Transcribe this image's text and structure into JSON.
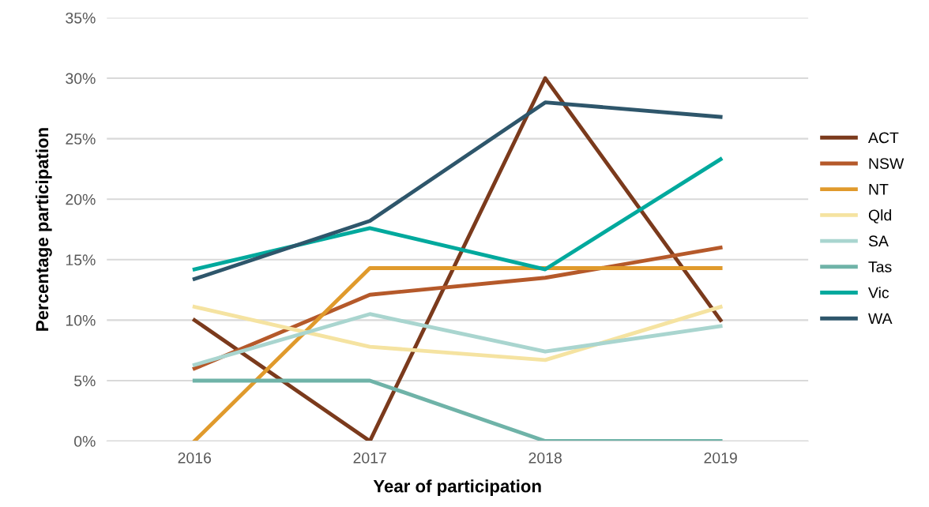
{
  "chart_data": {
    "type": "line",
    "xlabel": "Year of participation",
    "ylabel": "Percentage participation",
    "categories": [
      "2016",
      "2017",
      "2018",
      "2019"
    ],
    "series": [
      {
        "name": "ACT",
        "color": "#7b3a1c",
        "values": [
          10,
          0,
          30,
          10
        ]
      },
      {
        "name": "NSW",
        "color": "#b5592a",
        "values": [
          6,
          12.1,
          13.5,
          16
        ]
      },
      {
        "name": "NT",
        "color": "#e09a2c",
        "values": [
          0,
          14.3,
          14.3,
          14.3
        ]
      },
      {
        "name": "Qld",
        "color": "#f5e3a1",
        "values": [
          11.1,
          7.8,
          6.7,
          11.1
        ]
      },
      {
        "name": "SA",
        "color": "#a9d5cf",
        "values": [
          6.3,
          10.5,
          7.4,
          9.5
        ]
      },
      {
        "name": "Tas",
        "color": "#6fb3a8",
        "values": [
          5,
          5,
          0,
          0
        ]
      },
      {
        "name": "Vic",
        "color": "#00a99d",
        "values": [
          14.2,
          17.6,
          14.2,
          23.3
        ]
      },
      {
        "name": "WA",
        "color": "#2e566b",
        "values": [
          13.4,
          18.2,
          28,
          26.8
        ]
      }
    ],
    "ylim": [
      0,
      35
    ],
    "yticks": [
      {
        "value": 0,
        "label": "0%"
      },
      {
        "value": 5,
        "label": "5%"
      },
      {
        "value": 10,
        "label": "10%"
      },
      {
        "value": 15,
        "label": "15%"
      },
      {
        "value": 20,
        "label": "20%"
      },
      {
        "value": 25,
        "label": "25%"
      },
      {
        "value": 30,
        "label": "30%"
      },
      {
        "value": 35,
        "label": "35%"
      }
    ],
    "grid": "y",
    "legend": "right",
    "marker": "none",
    "line_style": "solid"
  }
}
